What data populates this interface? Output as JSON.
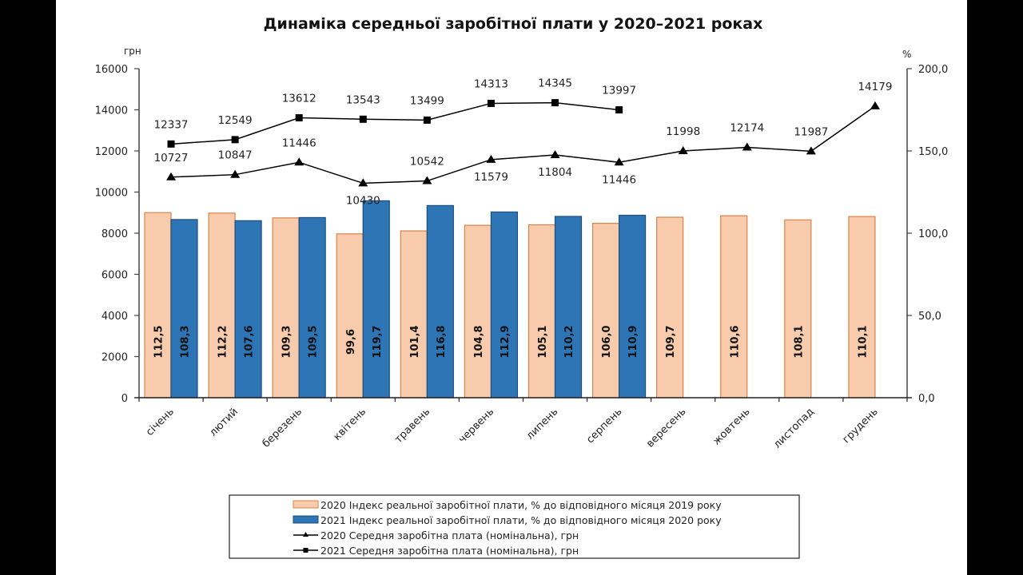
{
  "chart_data": {
    "type": "bar",
    "title": "Динаміка середньої заробітної плати у 2020–2021 роках",
    "categories": [
      "січень",
      "лютий",
      "березень",
      "квітень",
      "травень",
      "червень",
      "липень",
      "серпень",
      "вересень",
      "жовтень",
      "листопад",
      "грудень"
    ],
    "left_axis": {
      "unit": "грн",
      "range": [
        0,
        16000
      ],
      "ticks": [
        "0",
        "2000",
        "4000",
        "6000",
        "8000",
        "10000",
        "12000",
        "14000",
        "16000"
      ],
      "tick_values": [
        0,
        2000,
        4000,
        6000,
        8000,
        10000,
        12000,
        14000,
        16000
      ]
    },
    "right_axis": {
      "unit": "%",
      "range": [
        0,
        200
      ],
      "ticks": [
        "0,0",
        "50,0",
        "100,0",
        "150,0",
        "200,0"
      ],
      "tick_values": [
        0,
        50,
        100,
        150,
        200
      ]
    },
    "series": [
      {
        "name": "2020 Індекс реальної заробітної плати, % до відповідного місяця 2019 року",
        "kind": "bar",
        "axis": "right",
        "color": "#F8CBAD",
        "border": "#D9834A",
        "values": [
          112.5,
          112.2,
          109.3,
          99.6,
          101.4,
          104.8,
          105.1,
          106.0,
          109.7,
          110.6,
          108.1,
          110.1
        ],
        "labels": [
          "112,5",
          "112,2",
          "109,3",
          "99,6",
          "101,4",
          "104,8",
          "105,1",
          "106,0",
          "109,7",
          "110,6",
          "108,1",
          "110,1"
        ]
      },
      {
        "name": "2021 Індекс реальної заробітної плати, % до відповідного місяця 2020 року",
        "kind": "bar",
        "axis": "right",
        "color": "#2E75B6",
        "border": "#1F4E79",
        "values": [
          108.3,
          107.6,
          109.5,
          119.7,
          116.8,
          112.9,
          110.2,
          110.9,
          null,
          null,
          null,
          null
        ],
        "labels": [
          "108,3",
          "107,6",
          "109,5",
          "119,7",
          "116,8",
          "112,9",
          "110,2",
          "110,9",
          null,
          null,
          null,
          null
        ]
      },
      {
        "name": "2020 Середня заробітна плата (номінальна), грн",
        "kind": "line",
        "marker": "triangle",
        "axis": "left",
        "color": "#000000",
        "values": [
          10727,
          10847,
          11446,
          10430,
          10542,
          11579,
          11804,
          11446,
          11998,
          12174,
          11987,
          14179
        ],
        "label_position": [
          "above",
          "above",
          "above",
          "below",
          "above",
          "below",
          "below",
          "below",
          "above",
          "above",
          "above",
          "above"
        ]
      },
      {
        "name": "2021 Середня заробітна плата (номінальна), грн",
        "kind": "line",
        "marker": "square",
        "axis": "left",
        "color": "#000000",
        "values": [
          12337,
          12549,
          13612,
          13543,
          13499,
          14313,
          14345,
          13997,
          null,
          null,
          null,
          null
        ],
        "label_position": [
          "above",
          "above",
          "above",
          "above",
          "above",
          "above",
          "above",
          "above",
          null,
          null,
          null,
          null
        ]
      }
    ],
    "legend": {
      "placement": "bottom",
      "entries": [
        "2020 Індекс реальної заробітної плати, % до відповідного місяця 2019 року",
        "2021 Індекс реальної заробітної плати, % до відповідного місяця 2020 року",
        "2020 Середня заробітна плата (номінальна), грн",
        "2021 Середня заробітна плата (номінальна), грн"
      ]
    },
    "grid": false
  }
}
